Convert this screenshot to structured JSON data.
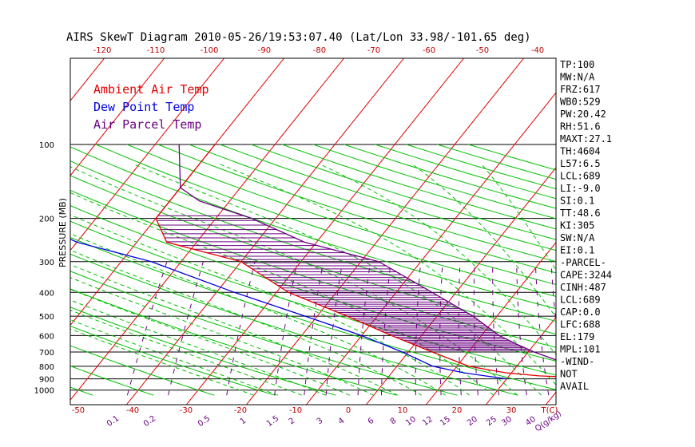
{
  "title": "AIRS SkewT Diagram 2010-05-26/19:53:07.40 (Lat/Lon 33.98/-101.65 deg)",
  "y_axis_label": "PRESSURE (MB)",
  "legend": [
    {
      "label": "Ambient Air Temp",
      "color": "#e00000"
    },
    {
      "label": "Dew Point Temp",
      "color": "#0000e0"
    },
    {
      "label": "Air Parcel Temp",
      "color": "#6a0080"
    }
  ],
  "top_ticks": [
    "-120",
    "-110",
    "-100",
    "-90",
    "-80",
    "-70",
    "-60",
    "-50",
    "-40"
  ],
  "bottom_ticks": [
    "-50",
    "-40",
    "-30",
    "-20",
    "-10",
    "0",
    "10",
    "20",
    "30",
    "T(C)"
  ],
  "pressure_ticks": [
    "100",
    "200",
    "300",
    "400",
    "500",
    "600",
    "700",
    "800",
    "900",
    "1000"
  ],
  "mixing_ratio_labels": [
    "0.1",
    "0.2",
    "0.5",
    "1",
    "1.5",
    "2",
    "3",
    "4",
    "6",
    "8",
    "10",
    "12",
    "15",
    "20",
    "25",
    "30",
    "40",
    "Q(g/kg)"
  ],
  "indices": [
    "TP:100",
    "MW:N/A",
    "FRZ:617",
    "WB0:529",
    "PW:20.42",
    "RH:51.6",
    "MAXT:27.1",
    "TH:4604",
    "L57:6.5",
    "LCL:689",
    "LI:-9.0",
    "SI:0.1",
    "TT:48.6",
    "KI:305",
    "SW:N/A",
    "EI:0.1",
    "-PARCEL-",
    "CAPE:3244",
    "CINH:487",
    "LCL:689",
    "CAP:0.0",
    "LFC:688",
    "EL:179",
    "MPL:101",
    "-WIND-",
    "NOT",
    "AVAIL"
  ],
  "colors": {
    "isotherm": "#e00000",
    "dry_adiabat": "#00c000",
    "moist_adiabat": "#00c000",
    "mixing_ratio": "#6a0080",
    "ambient": "#e00000",
    "dewpoint": "#0000e0",
    "parcel": "#6a0080",
    "cape_hatch": "#6a0080"
  },
  "chart_data": {
    "type": "line",
    "title": "AIRS SkewT Diagram 2010-05-26/19:53:07.40 (Lat/Lon 33.98/-101.65 deg)",
    "ylabel": "PRESSURE (MB)",
    "xlabel": "T(C)",
    "y_scale": "log",
    "y_reversed": true,
    "ylim": [
      1000,
      100
    ],
    "xlim_bottom": [
      -50,
      40
    ],
    "skewed_x": true,
    "grid": true,
    "legend_position": "top-left",
    "series": [
      {
        "name": "Ambient Air Temp",
        "x": [
          37,
          25,
          19,
          12,
          4,
          -5,
          -15,
          -28,
          -40,
          -55,
          -60,
          -60,
          -60,
          -60
        ],
        "y": [
          900,
          875,
          850,
          800,
          700,
          600,
          500,
          400,
          300,
          250,
          200,
          170,
          150,
          100
        ]
      },
      {
        "name": "Dew Point Temp",
        "x": [
          20,
          16,
          12,
          6,
          -1,
          -10,
          -22,
          -37,
          -55,
          -70,
          -82,
          -92
        ],
        "y": [
          900,
          875,
          850,
          800,
          700,
          600,
          500,
          400,
          300,
          250,
          200,
          100
        ]
      },
      {
        "name": "Air Parcel Temp",
        "x": [
          37,
          21,
          17,
          13,
          6,
          -4,
          -17,
          -32,
          -44,
          -55,
          -60,
          -66
        ],
        "y": [
          900,
          700,
          650,
          600,
          500,
          400,
          300,
          250,
          200,
          170,
          150,
          100
        ]
      }
    ]
  }
}
